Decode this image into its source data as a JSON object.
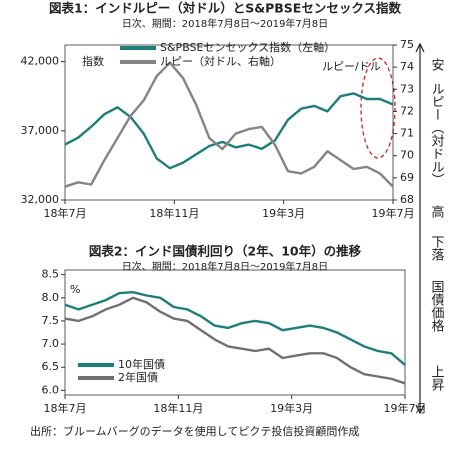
{
  "chart_data": [
    {
      "type": "line",
      "title": "図表1：インドルピー（対ドル）とS&PBSEセンセックス指数",
      "subtitle": "日次、期間：2018年7月8日～2019年7月8日",
      "y_label": "指数",
      "y2_label": "ルピー（対ドル）",
      "y2_top_label": "安",
      "y2_bottom_label": "高",
      "annotation": "ルピー/ドル",
      "xlim": [
        0,
        12
      ],
      "xticks": [
        {
          "value": 0,
          "label": "18年7月"
        },
        {
          "value": 4,
          "label": "18年11月"
        },
        {
          "value": 8,
          "label": "19年3月"
        },
        {
          "value": 12,
          "label": "19年7月"
        }
      ],
      "ylim": [
        32000,
        43200
      ],
      "yticks": [
        {
          "value": 32000,
          "label": "32,000"
        },
        {
          "value": 37000,
          "label": "37,000"
        },
        {
          "value": 42000,
          "label": "42,000"
        }
      ],
      "y2lim": [
        68,
        75
      ],
      "y2ticks": [
        68,
        69,
        70,
        71,
        72,
        73,
        74,
        75
      ],
      "legend": "top",
      "series": [
        {
          "name": "S&PBSEセンセックス指数（左軸）",
          "color": "#1d7f7c",
          "values": [
            36000,
            36500,
            37300,
            38200,
            38700,
            38000,
            36800,
            35000,
            34300,
            34700,
            35300,
            35900,
            36200,
            35800,
            36000,
            35700,
            36300,
            37800,
            38600,
            38800,
            38400,
            39500,
            39700,
            39300,
            39300,
            38900
          ]
        },
        {
          "name": "ルピー（対ドル、右軸）",
          "color": "#858585",
          "axis": "y2",
          "values": [
            68.6,
            68.8,
            68.7,
            69.8,
            70.8,
            71.8,
            72.5,
            73.6,
            74.2,
            73.5,
            72.3,
            70.8,
            70.3,
            71.0,
            71.2,
            71.3,
            70.5,
            69.3,
            69.2,
            69.5,
            70.2,
            69.8,
            69.4,
            69.5,
            69.2,
            68.6
          ]
        }
      ]
    },
    {
      "type": "line",
      "title": "図表2：インド国債利回り（2年、10年）の推移",
      "subtitle": "日次、期間：2018年7月8日～2019年7月8日",
      "y_label": "%",
      "right_top_label": "下落",
      "right_label": "国債価格",
      "right_bottom_label": "上昇",
      "xlim": [
        0,
        12
      ],
      "xticks": [
        {
          "value": 0,
          "label": "18年7月"
        },
        {
          "value": 4,
          "label": "18年11月"
        },
        {
          "value": 8,
          "label": "19年3月"
        },
        {
          "value": 12,
          "label": "19年7月"
        }
      ],
      "ylim": [
        5.9,
        8.6
      ],
      "yticks": [
        {
          "value": 6.0,
          "label": "6.0"
        },
        6.5,
        {
          "value": 7.0,
          "label": "7.0"
        },
        7.5,
        {
          "value": 8.0,
          "label": "8.0"
        },
        8.5
      ],
      "legend": "lower left",
      "series": [
        {
          "name": "10年国債",
          "color": "#1d7f7c",
          "values": [
            7.85,
            7.75,
            7.85,
            7.95,
            8.1,
            8.12,
            8.05,
            8.0,
            7.8,
            7.75,
            7.6,
            7.4,
            7.35,
            7.45,
            7.5,
            7.45,
            7.3,
            7.35,
            7.4,
            7.35,
            7.25,
            7.1,
            6.95,
            6.85,
            6.8,
            6.55
          ]
        },
        {
          "name": "2年国債",
          "color": "#707070",
          "values": [
            7.55,
            7.5,
            7.6,
            7.75,
            7.85,
            8.0,
            7.9,
            7.7,
            7.55,
            7.5,
            7.3,
            7.1,
            6.95,
            6.9,
            6.85,
            6.9,
            6.7,
            6.75,
            6.8,
            6.8,
            6.7,
            6.5,
            6.35,
            6.3,
            6.25,
            6.15
          ]
        }
      ]
    }
  ],
  "source": "出所：ブルームバーグのデータを使用してピクテ投信投資顧問作成"
}
